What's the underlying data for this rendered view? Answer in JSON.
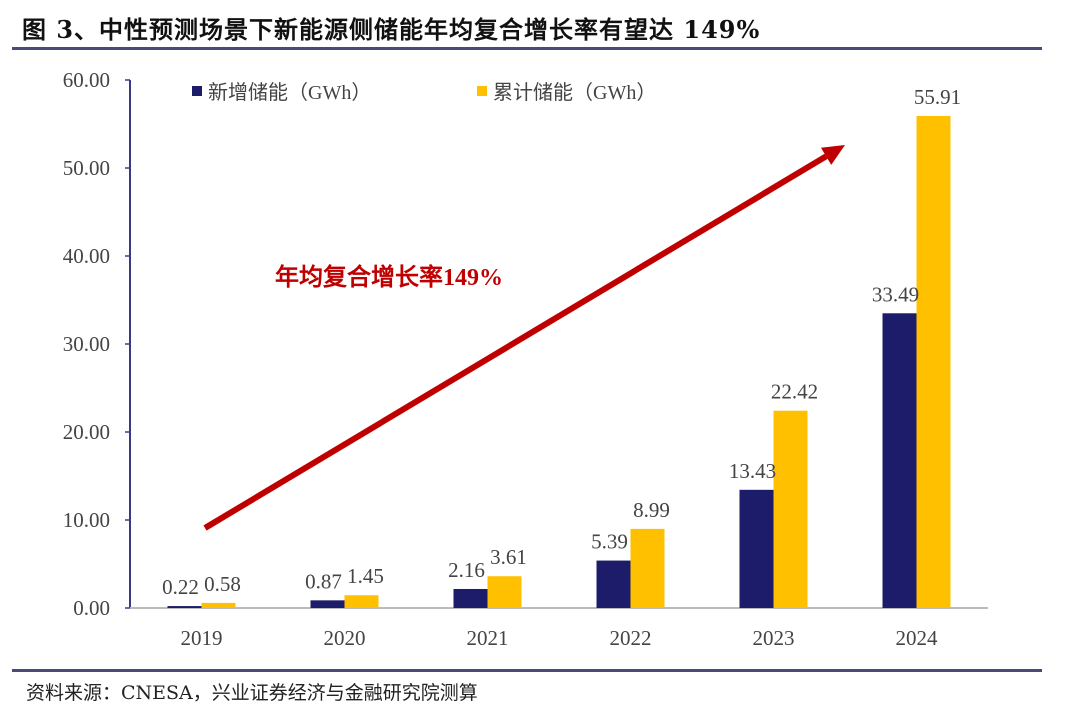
{
  "title": "图 3、中性预测场景下新能源侧储能年均复合增长率有望达 149%",
  "source": "资料来源：CNESA，兴业证券经济与金融研究院测算",
  "chart_data": {
    "type": "bar",
    "categories": [
      "2019",
      "2020",
      "2021",
      "2022",
      "2023",
      "2024"
    ],
    "series": [
      {
        "name": "新增储能（GWh）",
        "color": "#1c1c6b",
        "values": [
          0.22,
          0.87,
          2.16,
          5.39,
          13.43,
          33.49
        ],
        "labels": [
          "0.22",
          "0.87",
          "2.16",
          "5.39",
          "13.43",
          "33.49"
        ]
      },
      {
        "name": "累计储能（GWh）",
        "color": "#ffc000",
        "values": [
          0.58,
          1.45,
          3.61,
          8.99,
          22.42,
          55.91
        ],
        "labels": [
          "0.58",
          "1.45",
          "3.61",
          "8.99",
          "22.42",
          "55.91"
        ]
      }
    ],
    "ylim": [
      0,
      60
    ],
    "yticks": [
      "0.00",
      "10.00",
      "20.00",
      "30.00",
      "40.00",
      "50.00",
      "60.00"
    ],
    "grid": false,
    "legend": "top-left",
    "annotation": {
      "text": "年均复合增长率149%",
      "color": "#c00000"
    },
    "arrow_color": "#c00000"
  }
}
